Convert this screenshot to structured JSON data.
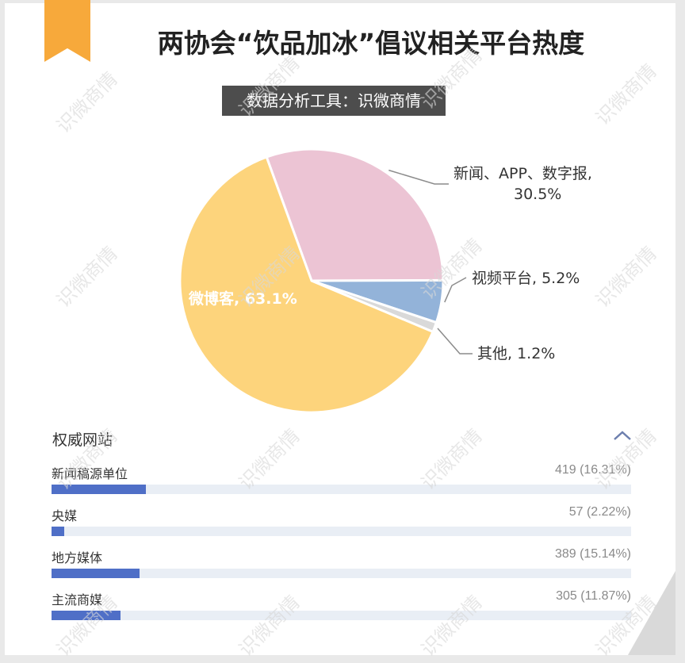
{
  "title": "两协会“饮品加冰”倡议相关平台热度",
  "subtitle": "数据分析工具：识微商情",
  "watermark_text": "识微商情",
  "colors": {
    "ribbon": "#f7a93b",
    "subtitle_bg": "#4d4d4d",
    "bar_fill": "#4f6fc7",
    "bar_track": "#e9eef5"
  },
  "chart_data": [
    {
      "type": "pie",
      "slices": [
        {
          "label": "新闻、APP、数字报,",
          "value_text": "30.5%",
          "value": 30.5,
          "color": "#ecc4d4"
        },
        {
          "label": "视频平台, 5.2%",
          "value": 5.2,
          "color": "#93b3d9"
        },
        {
          "label": "其他, 1.2%",
          "value": 1.2,
          "color": "#d9d9d9"
        },
        {
          "label": "微博客, 63.1%",
          "value": 63.1,
          "color": "#fdd47c"
        }
      ]
    },
    {
      "type": "bar",
      "title": "权威网站",
      "max": 100,
      "rows": [
        {
          "label": "新闻稿源单位",
          "count": "419",
          "percent_text": "(16.31%)",
          "percent": 16.31
        },
        {
          "label": "央媒",
          "count": "57",
          "percent_text": "(2.22%)",
          "percent": 2.22
        },
        {
          "label": "地方媒体",
          "count": "389",
          "percent_text": "(15.14%)",
          "percent": 15.14
        },
        {
          "label": "主流商媒",
          "count": "305",
          "percent_text": "(11.87%)",
          "percent": 11.87
        }
      ]
    }
  ]
}
